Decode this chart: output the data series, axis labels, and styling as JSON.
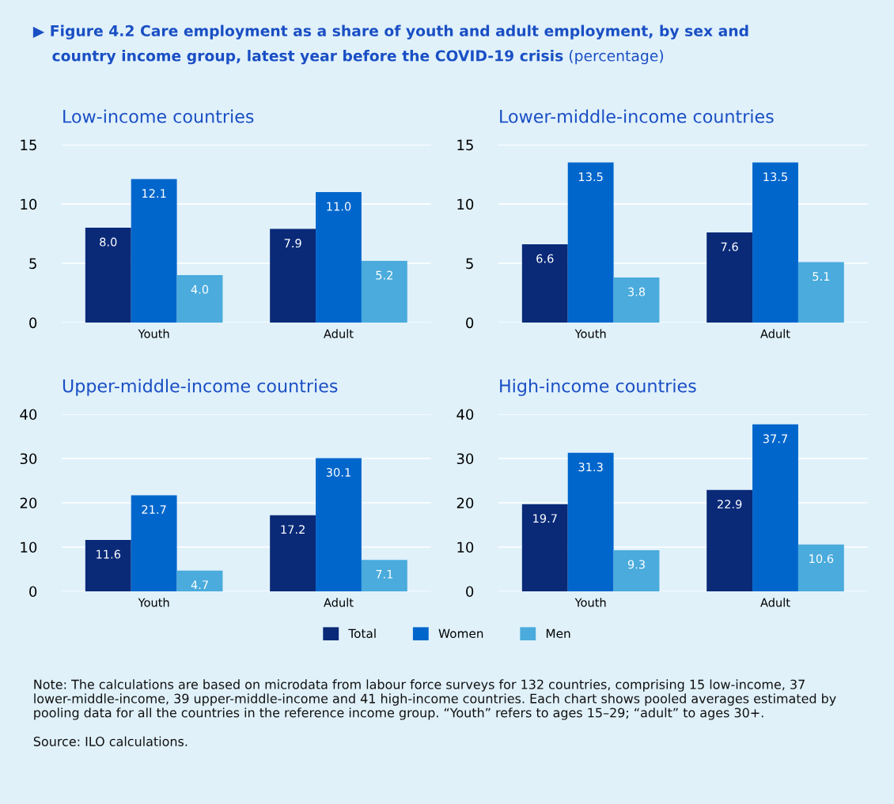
{
  "chart_data": [
    {
      "type": "bar",
      "title": "Low-income countries",
      "annotations": [
        "▶ Figure 4.2 Care employment as a share of youth and adult employment, by sex and country income group, latest year before the COVID-19 crisis",
        "(percentage)"
      ],
      "categories": [
        "Youth",
        "Adult"
      ],
      "ylim": [
        0,
        15
      ],
      "yticks": [
        0,
        5,
        10,
        15
      ],
      "grid": "y",
      "legend": "bottom",
      "series": [
        {
          "name": "Total",
          "color": "#0a2a78",
          "values": [
            8.0,
            7.9
          ],
          "value_labels": [
            "8.0",
            "7.9"
          ]
        },
        {
          "name": "Women",
          "color": "#0066cc",
          "values": [
            12.1,
            11.0
          ],
          "value_labels": [
            "12.1",
            "11.0"
          ]
        },
        {
          "name": "Men",
          "color": "#4aabdc",
          "values": [
            4.0,
            5.2
          ],
          "value_labels": [
            "4.0",
            "5.2"
          ]
        }
      ]
    },
    {
      "type": "bar",
      "title": "Lower-middle-income countries",
      "categories": [
        "Youth",
        "Adult"
      ],
      "ylim": [
        0,
        15
      ],
      "yticks": [
        0,
        5,
        10,
        15
      ],
      "grid": "y",
      "series": [
        {
          "color": "#0a2a78",
          "values": [
            6.6,
            7.6
          ],
          "value_labels": [
            "6.6",
            "7.6"
          ]
        },
        {
          "color": "#0066cc",
          "values": [
            13.5,
            13.5
          ],
          "value_labels": [
            "13.5",
            "13.5"
          ]
        },
        {
          "color": "#4aabdc",
          "values": [
            3.8,
            5.1
          ],
          "value_labels": [
            "3.8",
            "5.1"
          ]
        }
      ]
    },
    {
      "type": "bar",
      "title": "Upper-middle-income countries",
      "categories": [
        "Youth",
        "Adult"
      ],
      "ylim": [
        0,
        40
      ],
      "yticks": [
        0,
        10,
        20,
        30,
        40
      ],
      "grid": "y",
      "series": [
        {
          "color": "#0a2a78",
          "values": [
            11.6,
            17.2
          ],
          "value_labels": [
            "11.6",
            "17.2"
          ]
        },
        {
          "color": "#0066cc",
          "values": [
            21.7,
            30.1
          ],
          "value_labels": [
            "21.7",
            "30.1"
          ]
        },
        {
          "color": "#4aabdc",
          "values": [
            4.7,
            7.1
          ],
          "value_labels": [
            "4.7",
            "7.1"
          ]
        }
      ]
    },
    {
      "type": "bar",
      "title": "High-income countries",
      "categories": [
        "Youth",
        "Adult"
      ],
      "ylim": [
        0,
        40
      ],
      "yticks": [
        0,
        10,
        20,
        30,
        40
      ],
      "grid": "y",
      "annotations": [
        "Note: The calculations are based on microdata from labour force surveys for 132 countries, comprising 15 low-income, 37 lower-middle-income, 39 upper-middle-income and 41 high-income countries. Each chart shows pooled averages estimated by pooling data for all the countries in the reference income group. “Youth” refers to ages 15–29; “adult” to ages 30+.",
        "Source: ILO calculations."
      ],
      "series": [
        {
          "color": "#0a2a78",
          "values": [
            19.7,
            22.9
          ],
          "value_labels": [
            "19.7",
            "22.9"
          ]
        },
        {
          "color": "#0066cc",
          "values": [
            31.3,
            37.7
          ],
          "value_labels": [
            "31.3",
            "37.7"
          ]
        },
        {
          "color": "#4aabdc",
          "values": [
            9.3,
            10.6
          ],
          "value_labels": [
            "9.3",
            "10.6"
          ]
        }
      ]
    }
  ]
}
